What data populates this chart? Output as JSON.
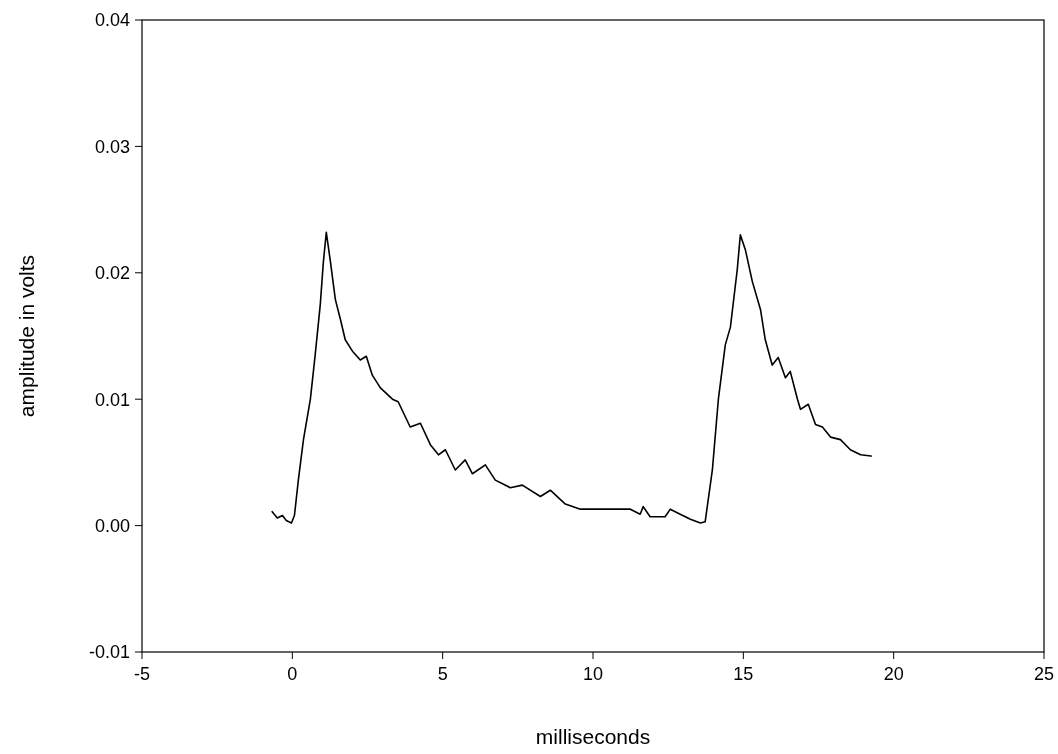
{
  "chart_data": {
    "type": "line",
    "xlabel": "milliseconds",
    "ylabel": "amplitude in volts",
    "xlim": [
      -5,
      25
    ],
    "ylim": [
      -0.01,
      0.04
    ],
    "xticks": [
      -5,
      0,
      5,
      10,
      15,
      20,
      25
    ],
    "yticks": [
      {
        "value": -0.01,
        "label": "-0.01"
      },
      {
        "value": 0,
        "label": "0.00"
      },
      {
        "value": 0.01,
        "label": "0.01"
      },
      {
        "value": 0.02,
        "label": "0.02"
      },
      {
        "value": 0.03,
        "label": "0.03"
      },
      {
        "value": 0.04,
        "label": "0.04"
      }
    ],
    "grid": false,
    "line_style": "solid",
    "series": [
      {
        "color": "#000000",
        "x": [
          -0.67,
          -0.5,
          -0.33,
          -0.2,
          -0.03,
          0.07,
          0.2,
          0.37,
          0.6,
          0.76,
          0.93,
          1.03,
          1.13,
          1.26,
          1.43,
          1.6,
          1.76,
          2.0,
          2.26,
          2.46,
          2.66,
          2.93,
          3.33,
          3.52,
          3.92,
          4.26,
          4.59,
          4.86,
          5.09,
          5.42,
          5.75,
          5.99,
          6.42,
          6.75,
          7.25,
          7.65,
          8.25,
          8.58,
          9.08,
          9.58,
          10.24,
          10.9,
          11.24,
          11.57,
          11.67,
          11.9,
          12.4,
          12.57,
          12.9,
          13.24,
          13.57,
          13.73,
          13.97,
          14.17,
          14.4,
          14.57,
          14.8,
          14.9,
          15.07,
          15.3,
          15.57,
          15.73,
          15.96,
          16.16,
          16.4,
          16.56,
          16.8,
          16.9,
          17.16,
          17.4,
          17.63,
          17.9,
          18.23,
          18.56,
          18.9,
          19.25
        ],
        "values": [
          0.0011,
          0.0006,
          0.0008,
          0.0004,
          0.0002,
          0.0008,
          0.0036,
          0.0068,
          0.01,
          0.0135,
          0.0175,
          0.0208,
          0.0232,
          0.021,
          0.0179,
          0.0163,
          0.0147,
          0.0138,
          0.0131,
          0.0134,
          0.0119,
          0.0109,
          0.01,
          0.0098,
          0.0078,
          0.0081,
          0.0064,
          0.0056,
          0.006,
          0.0044,
          0.0052,
          0.0041,
          0.0048,
          0.0036,
          0.003,
          0.0032,
          0.0023,
          0.0028,
          0.0017,
          0.0013,
          0.0013,
          0.0013,
          0.0013,
          0.0009,
          0.0015,
          0.0007,
          0.0007,
          0.0013,
          0.0009,
          0.0005,
          0.0002,
          0.0003,
          0.0044,
          0.01,
          0.0143,
          0.0157,
          0.0203,
          0.023,
          0.0218,
          0.0193,
          0.0171,
          0.0147,
          0.0127,
          0.0133,
          0.0117,
          0.0122,
          0.01,
          0.0092,
          0.0096,
          0.008,
          0.0078,
          0.007,
          0.0068,
          0.006,
          0.0056,
          0.0055
        ]
      }
    ]
  }
}
